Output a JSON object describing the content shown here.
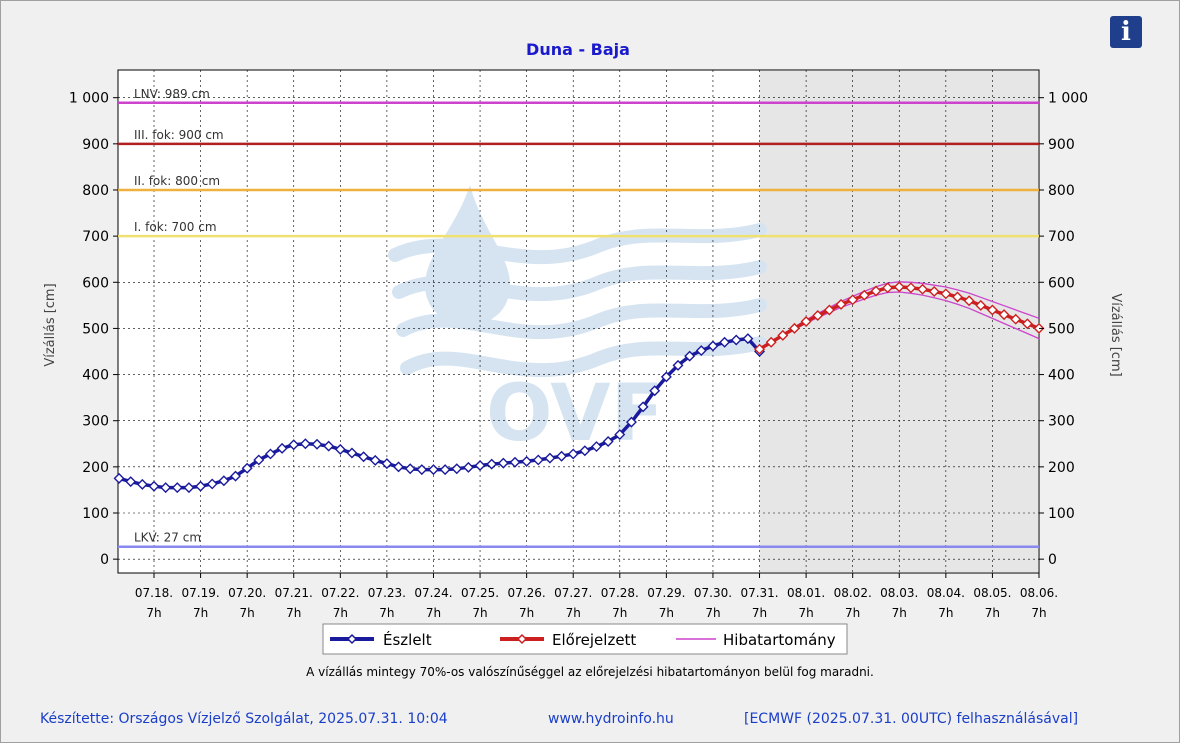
{
  "info_button": {
    "icon": "info-icon",
    "glyph": "i",
    "color": "#1f3f8c"
  },
  "chart_data": {
    "type": "line",
    "title": "Duna - Baja",
    "ylabel": "Vízállás [cm]",
    "ylabel_right": "Vízállás [cm]",
    "ylim": [
      -30,
      1060
    ],
    "yticks": [
      0,
      100,
      200,
      300,
      400,
      500,
      600,
      700,
      800,
      900,
      1000
    ],
    "ytick_labels": [
      "0",
      "100",
      "200",
      "300",
      "400",
      "500",
      "600",
      "700",
      "800",
      "900",
      "1 000"
    ],
    "x_tick_dates": [
      "07.18.",
      "07.19.",
      "07.20.",
      "07.21.",
      "07.22.",
      "07.23.",
      "07.24.",
      "07.25.",
      "07.26.",
      "07.27.",
      "07.28.",
      "07.29.",
      "07.30.",
      "07.31.",
      "08.01.",
      "08.02.",
      "08.03.",
      "08.04.",
      "08.05.",
      "08.06."
    ],
    "x_tick_hour": "7h",
    "grid": true,
    "forecast_shading_from": "07.31. 7h",
    "thresholds": [
      {
        "label": "LNV: 989 cm",
        "value": 989,
        "color": "#cc44cc"
      },
      {
        "label": "III. fok: 900 cm",
        "value": 900,
        "color": "#b02020"
      },
      {
        "label": "II. fok: 800 cm",
        "value": 800,
        "color": "#f0b040"
      },
      {
        "label": "I. fok: 700 cm",
        "value": 700,
        "color": "#f0e070"
      },
      {
        "label": "LKV: 27 cm",
        "value": 27,
        "color": "#8888ee"
      }
    ],
    "series": [
      {
        "name": "Észlelt",
        "color": "#1a1a9c",
        "marker": "diamond",
        "x": [
          "07.17. 13h",
          "07.17. 19h",
          "07.18. 1h",
          "07.18. 7h",
          "07.18. 13h",
          "07.18. 19h",
          "07.19. 1h",
          "07.19. 7h",
          "07.19. 13h",
          "07.19. 19h",
          "07.20. 1h",
          "07.20. 7h",
          "07.20. 13h",
          "07.20. 19h",
          "07.21. 1h",
          "07.21. 7h",
          "07.21. 13h",
          "07.21. 19h",
          "07.22. 1h",
          "07.22. 7h",
          "07.22. 13h",
          "07.22. 19h",
          "07.23. 1h",
          "07.23. 7h",
          "07.23. 13h",
          "07.23. 19h",
          "07.24. 1h",
          "07.24. 7h",
          "07.24. 13h",
          "07.24. 19h",
          "07.25. 1h",
          "07.25. 7h",
          "07.25. 13h",
          "07.25. 19h",
          "07.26. 1h",
          "07.26. 7h",
          "07.26. 13h",
          "07.26. 19h",
          "07.27. 1h",
          "07.27. 7h",
          "07.27. 13h",
          "07.27. 19h",
          "07.28. 1h",
          "07.28. 7h",
          "07.28. 13h",
          "07.28. 19h",
          "07.29. 1h",
          "07.29. 7h",
          "07.29. 13h",
          "07.29. 19h",
          "07.30. 1h",
          "07.30. 7h",
          "07.30. 13h",
          "07.30. 19h",
          "07.31. 1h",
          "07.31. 7h"
        ],
        "values": [
          175,
          168,
          162,
          158,
          155,
          155,
          155,
          158,
          163,
          170,
          180,
          197,
          215,
          228,
          240,
          248,
          250,
          249,
          245,
          238,
          230,
          222,
          214,
          207,
          200,
          196,
          194,
          194,
          194,
          196,
          199,
          203,
          206,
          208,
          210,
          212,
          215,
          219,
          223,
          228,
          235,
          244,
          255,
          270,
          297,
          330,
          365,
          395,
          420,
          440,
          452,
          462,
          470,
          475,
          478,
          450
        ]
      },
      {
        "name": "Előrejelzett",
        "color": "#cc2020",
        "marker": "diamond",
        "x": [
          "07.31. 7h",
          "07.31. 13h",
          "07.31. 19h",
          "08.01. 1h",
          "08.01. 7h",
          "08.01. 13h",
          "08.01. 19h",
          "08.02. 1h",
          "08.02. 7h",
          "08.02. 13h",
          "08.02. 19h",
          "08.03. 1h",
          "08.03. 7h",
          "08.03. 13h",
          "08.03. 19h",
          "08.04. 1h",
          "08.04. 7h",
          "08.04. 13h",
          "08.04. 19h",
          "08.05. 1h",
          "08.05. 7h",
          "08.05. 13h",
          "08.05. 19h",
          "08.06. 1h",
          "08.06. 7h"
        ],
        "values": [
          455,
          470,
          485,
          500,
          515,
          528,
          540,
          552,
          562,
          572,
          581,
          588,
          590,
          588,
          585,
          580,
          575,
          568,
          560,
          550,
          540,
          530,
          520,
          510,
          500
        ]
      },
      {
        "name": "Hibatartomány",
        "color": "#cc44cc",
        "marker": "none"
      }
    ],
    "note": "A vízállás mintegy 70%-os valószínűséggel az előrejelzési hibatartományon belül fog maradni."
  },
  "footer": {
    "author": "Készítette: Országos Vízjelző Szolgálat, 2025.07.31. 10:04",
    "website": "www.hydroinfo.hu",
    "source": "[ECMWF (2025.07.31. 00UTC) felhasználásával]"
  },
  "watermark": {
    "text": "OVF",
    "icon": "water-drop-logo"
  },
  "colors": {
    "observed": "#1a1a9c",
    "forecast": "#cc2020",
    "range": "#cc44cc",
    "title": "#1a1acc",
    "footer": "#1a3ec8"
  }
}
